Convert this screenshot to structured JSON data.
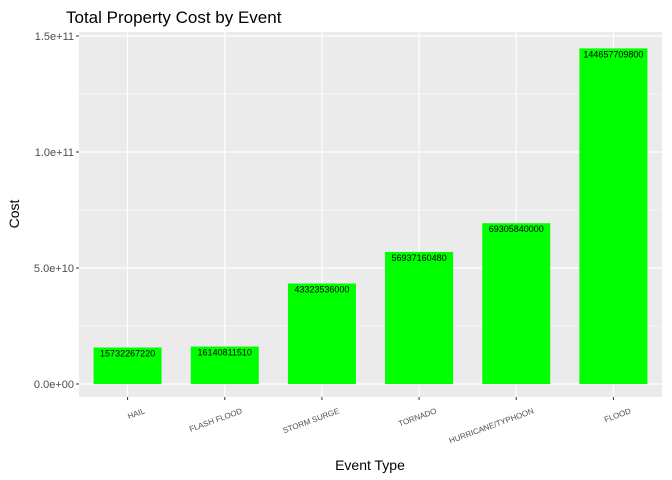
{
  "chart_data": {
    "type": "bar",
    "title": "Total Property Cost by Event",
    "xlabel": "Event Type",
    "ylabel": "Cost",
    "categories": [
      "HAIL",
      "FLASH FLOOD",
      "STORM SURGE",
      "TORNADO",
      "HURRICANE/TYPHOON",
      "FLOOD"
    ],
    "values": [
      15732267220,
      16140811510,
      43323536000,
      56937160480,
      69305840000,
      144657709800
    ],
    "value_labels": [
      "15732267220",
      "16140811510",
      "43323536000",
      "56937160480",
      "69305840000",
      "144657709800"
    ],
    "ylim": [
      0,
      150000000000
    ],
    "yticks": [
      0,
      50000000000,
      100000000000,
      150000000000
    ],
    "ytick_labels": [
      "0.0e+00",
      "5.0e+10",
      "1.0e+11",
      "1.5e+11"
    ],
    "bar_color": "#00ff00",
    "panel_color": "#ebebeb",
    "grid": true,
    "legend": "none"
  }
}
